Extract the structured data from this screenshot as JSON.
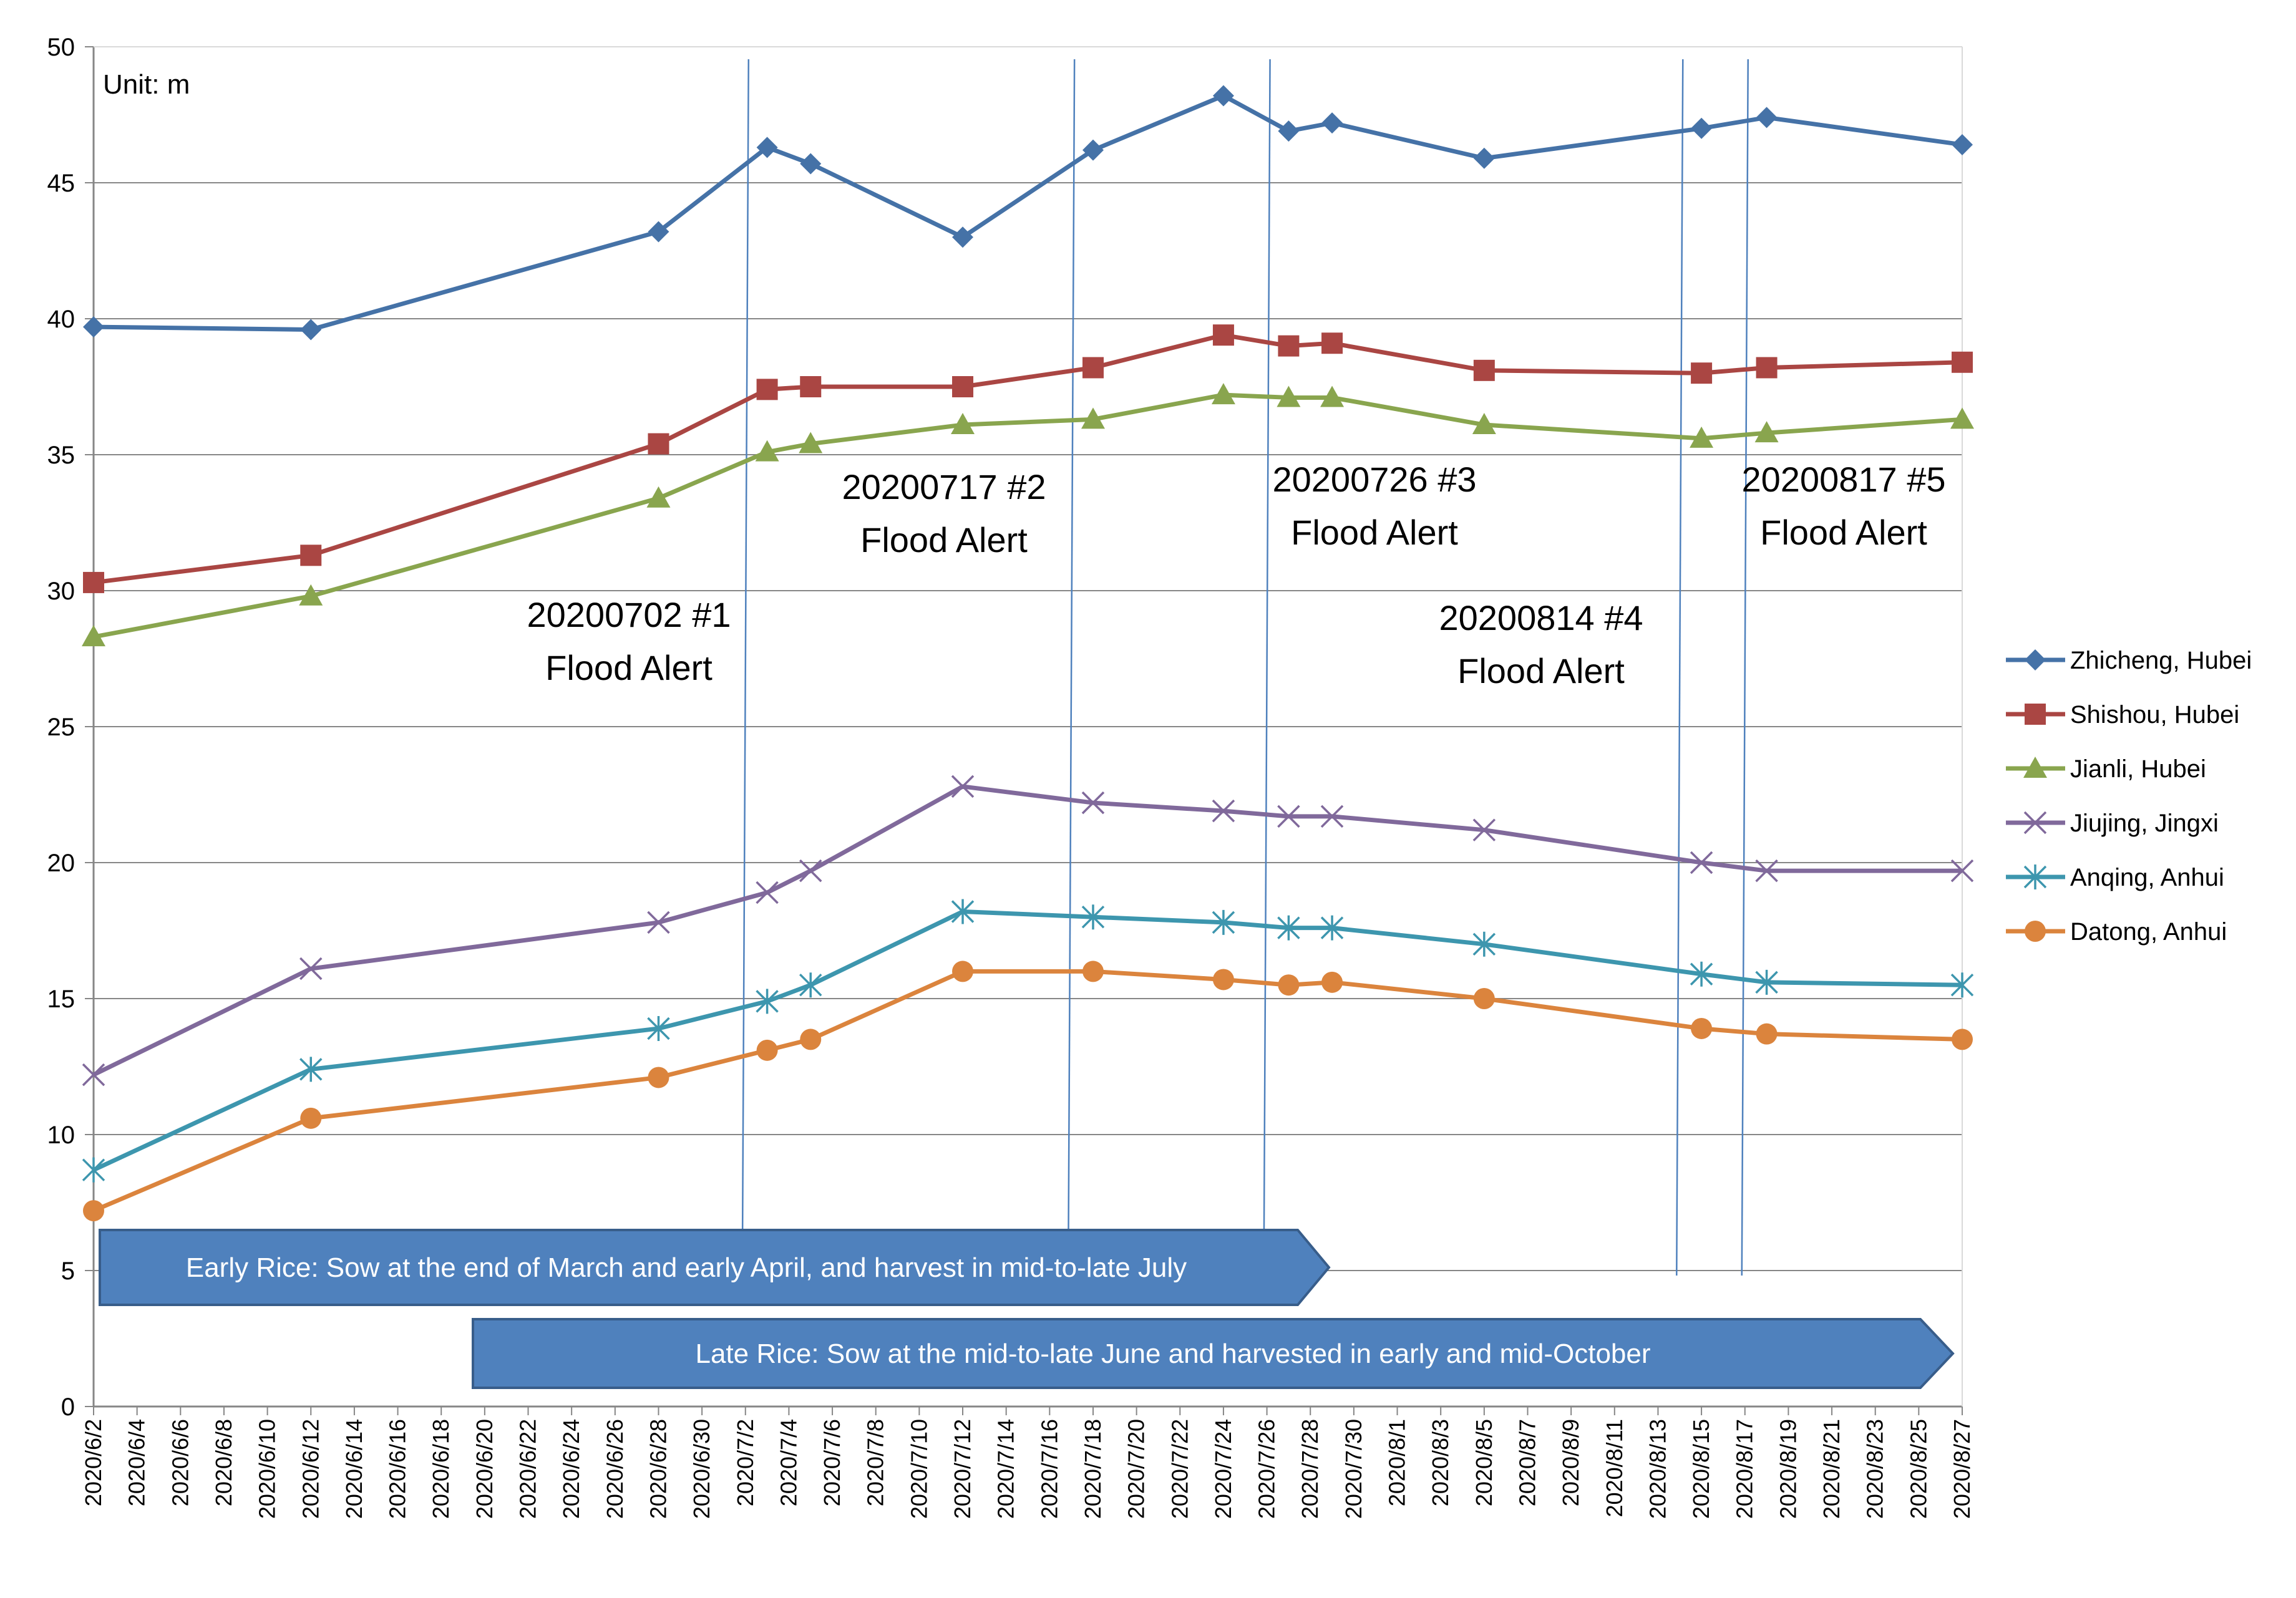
{
  "chart_data": {
    "type": "line",
    "unit_label": "Unit: m",
    "ylim": [
      0,
      50
    ],
    "y_ticks": [
      0,
      5,
      10,
      15,
      20,
      25,
      30,
      35,
      40,
      45,
      50
    ],
    "x_range_days": [
      0,
      86
    ],
    "x_ticks": [
      "2020/6/2",
      "2020/6/4",
      "2020/6/6",
      "2020/6/8",
      "2020/6/10",
      "2020/6/12",
      "2020/6/14",
      "2020/6/16",
      "2020/6/18",
      "2020/6/20",
      "2020/6/22",
      "2020/6/24",
      "2020/6/26",
      "2020/6/28",
      "2020/6/30",
      "2020/7/2",
      "2020/7/4",
      "2020/7/6",
      "2020/7/8",
      "2020/7/10",
      "2020/7/12",
      "2020/7/14",
      "2020/7/16",
      "2020/7/18",
      "2020/7/20",
      "2020/7/22",
      "2020/7/24",
      "2020/7/26",
      "2020/7/28",
      "2020/7/30",
      "2020/8/1",
      "2020/8/3",
      "2020/8/5",
      "2020/8/7",
      "2020/8/9",
      "2020/8/11",
      "2020/8/13",
      "2020/8/15",
      "2020/8/17",
      "2020/8/19",
      "2020/8/21",
      "2020/8/23",
      "2020/8/25",
      "2020/8/27"
    ],
    "x_days": [
      0,
      10,
      26,
      31,
      33,
      40,
      46,
      52,
      55,
      57,
      64,
      74,
      77,
      86
    ],
    "series": [
      {
        "name": "Zhicheng, Hubei",
        "color": "#4572A7",
        "marker": "diamond",
        "x": [
          0,
          10,
          26,
          31,
          33,
          40,
          46,
          52,
          55,
          57,
          64,
          74,
          77,
          86
        ],
        "values": [
          39.7,
          39.6,
          43.2,
          46.3,
          45.7,
          43.0,
          46.2,
          48.2,
          46.9,
          47.2,
          45.9,
          47.0,
          47.4,
          46.4
        ]
      },
      {
        "name": "Shishou, Hubei",
        "color": "#AA4643",
        "marker": "square",
        "x": [
          0,
          10,
          26,
          31,
          33,
          40,
          46,
          52,
          55,
          57,
          64,
          74,
          77,
          86
        ],
        "values": [
          30.3,
          31.3,
          35.4,
          37.4,
          37.5,
          37.5,
          38.2,
          39.4,
          39.0,
          39.1,
          38.1,
          38.0,
          38.2,
          38.4
        ]
      },
      {
        "name": "Jianli, Hubei",
        "color": "#89A54E",
        "marker": "triangle",
        "x": [
          0,
          10,
          26,
          31,
          33,
          40,
          46,
          52,
          55,
          57,
          64,
          74,
          77,
          86
        ],
        "values": [
          28.3,
          29.8,
          33.4,
          35.1,
          35.4,
          36.1,
          36.3,
          37.2,
          37.1,
          37.1,
          36.1,
          35.6,
          35.8,
          36.3
        ]
      },
      {
        "name": "Jiujing, Jingxi",
        "color": "#80699B",
        "marker": "x",
        "x": [
          0,
          10,
          26,
          31,
          33,
          40,
          46,
          52,
          55,
          57,
          64,
          74,
          77,
          86
        ],
        "values": [
          12.2,
          16.1,
          17.8,
          18.9,
          19.7,
          22.8,
          22.2,
          21.9,
          21.7,
          21.7,
          21.2,
          20.0,
          19.7,
          19.7
        ]
      },
      {
        "name": "Anqing, Anhui",
        "color": "#3D96AE",
        "marker": "star",
        "x": [
          0,
          10,
          26,
          31,
          33,
          40,
          46,
          52,
          55,
          57,
          64,
          74,
          77,
          86
        ],
        "values": [
          8.7,
          12.4,
          13.9,
          14.9,
          15.5,
          18.2,
          18.0,
          17.8,
          17.6,
          17.6,
          17.0,
          15.9,
          15.6,
          15.5
        ]
      },
      {
        "name": "Datong, Anhui",
        "color": "#DB843D",
        "marker": "circle",
        "x": [
          0,
          10,
          26,
          31,
          33,
          40,
          46,
          52,
          55,
          57,
          64,
          74,
          77,
          86
        ],
        "values": [
          7.2,
          10.6,
          12.1,
          13.1,
          13.5,
          16.0,
          16.0,
          15.7,
          15.5,
          15.6,
          15.0,
          13.9,
          13.7,
          13.5
        ]
      }
    ],
    "flood_alerts": [
      {
        "line1": "20200702 #1",
        "line2": "Flood Alert",
        "day": 30
      },
      {
        "line1": "20200717 #2",
        "line2": "Flood Alert",
        "day": 45
      },
      {
        "line1": "20200726 #3",
        "line2": "Flood Alert",
        "day": 54
      },
      {
        "line1": "20200814 #4",
        "line2": "Flood Alert",
        "day": 73
      },
      {
        "line1": "20200817 #5",
        "line2": "Flood Alert",
        "day": 76
      }
    ],
    "banners": [
      {
        "text": "Early Rice: Sow at the end of March and early April, and harvest in mid-to-late July",
        "color": "#4F81BD"
      },
      {
        "text": "Late Rice: Sow at the mid-to-late June and harvested in early and mid-October",
        "color": "#4F81BD"
      }
    ],
    "legend_position": "right",
    "grid": true
  }
}
